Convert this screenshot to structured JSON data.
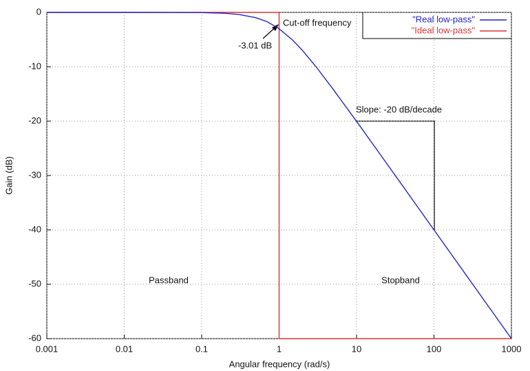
{
  "chart_data": {
    "type": "line",
    "xlabel": "Angular frequency (rad/s)",
    "ylabel": "Gain (dB)",
    "xscale": "log",
    "xlim": [
      0.001,
      1000
    ],
    "ylim": [
      -60,
      0
    ],
    "xticks": [
      0.001,
      0.01,
      0.1,
      1,
      10,
      100,
      1000
    ],
    "yticks": [
      0,
      -10,
      -20,
      -30,
      -40,
      -50,
      -60
    ],
    "grid": true,
    "legend": "upper right",
    "series": [
      {
        "name": "\"Real low-pass\"",
        "color": "#2222cc",
        "x": [
          0.001,
          0.01,
          0.1,
          0.2,
          0.3,
          0.5,
          0.7,
          1,
          1.5,
          2,
          3,
          5,
          7,
          10,
          20,
          50,
          100,
          1000
        ],
        "values": [
          0,
          0,
          -0.04,
          -0.17,
          -0.37,
          -0.97,
          -1.71,
          -3.01,
          -5.12,
          -6.99,
          -10,
          -14.15,
          -17.03,
          -20.04,
          -26.02,
          -33.98,
          -40,
          -60
        ]
      },
      {
        "name": "\"Ideal low-pass\"",
        "color": "#dd3333",
        "x": [
          0.001,
          1,
          1,
          1000
        ],
        "values": [
          0,
          0,
          -60,
          -60
        ]
      }
    ],
    "annotations": [
      "Cut-off frequency",
      "-3.01 dB",
      "Slope: -20 dB/decade",
      "Passband",
      "Stopband"
    ]
  }
}
